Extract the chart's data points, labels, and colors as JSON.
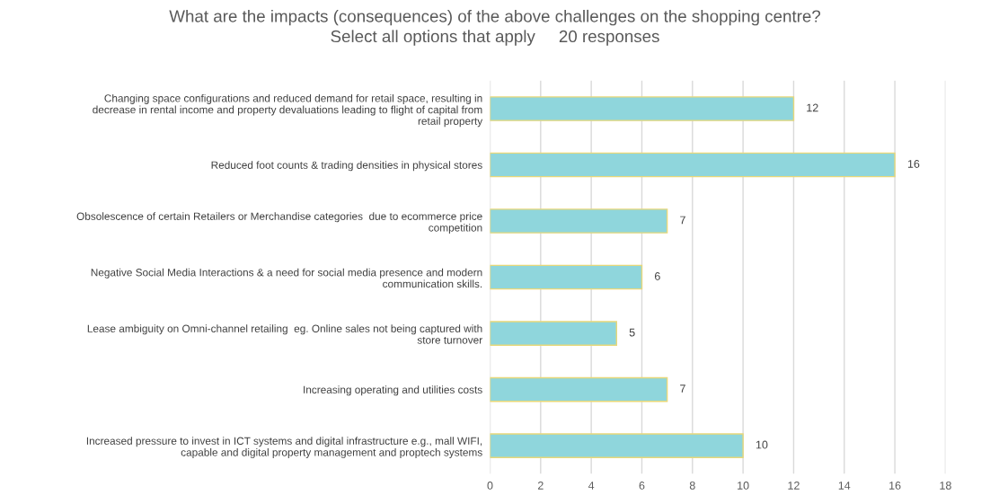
{
  "chart_data": {
    "type": "bar",
    "orientation": "horizontal",
    "title": "What are the impacts (consequences) of the above challenges on the shopping centre?",
    "subtitle": "Select all options that apply     20 responses",
    "categories": [
      "Changing space configurations and reduced demand for retail space, resulting in\ndecrease in rental income and property devaluations leading to flight of capital from\nretail property",
      "Reduced foot counts & trading densities in physical stores",
      "Obsolescence of certain Retailers or Merchandise categories  due to ecommerce price\ncompetition",
      "Negative Social Media Interactions & a need for social media presence and modern\ncommunication skills.",
      "Lease ambiguity on Omni-channel retailing  eg. Online sales not being captured with\nstore turnover",
      "Increasing operating and utilities costs",
      "Increased pressure to invest in ICT systems and digital infrastructure e.g., mall WIFI,\ncapable and digital property management and proptech systems"
    ],
    "values": [
      12,
      16,
      7,
      6,
      5,
      7,
      10
    ],
    "color": "#8fd6dc",
    "xlim": [
      0,
      18
    ],
    "xticks": [
      0,
      2,
      4,
      6,
      8,
      10,
      12,
      14,
      16,
      18
    ],
    "grid": "x",
    "data_labels": true,
    "legend": false
  }
}
